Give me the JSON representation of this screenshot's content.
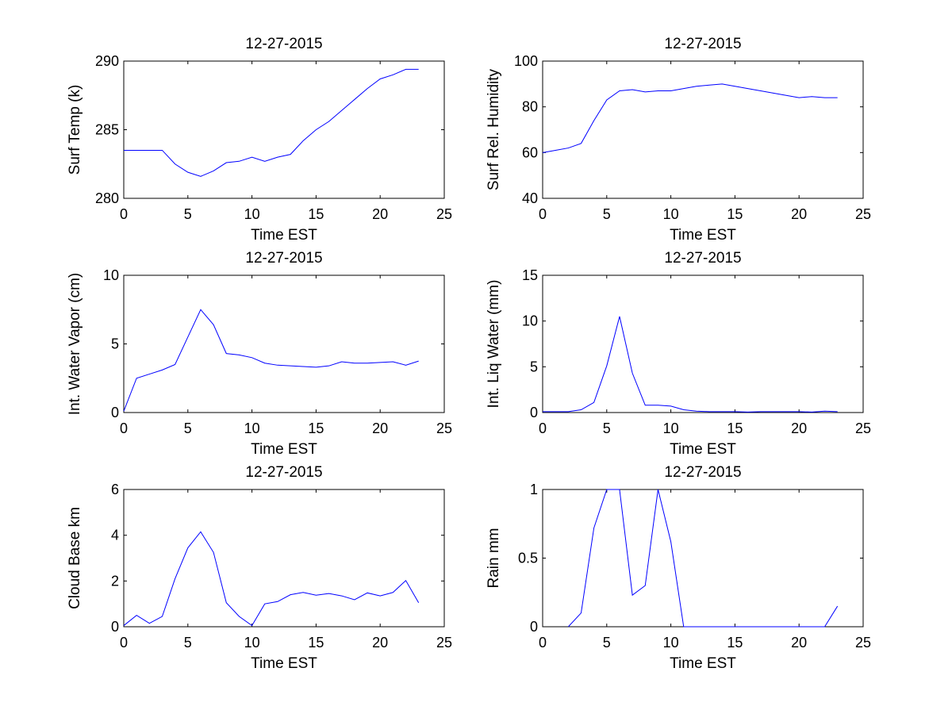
{
  "figure": {
    "series_color": "#0000ff"
  },
  "chart_data": [
    {
      "type": "line",
      "title": "12-27-2015",
      "xlabel": "Time EST",
      "ylabel": "Surf Temp (k)",
      "xlim": [
        0,
        25
      ],
      "ylim": [
        280,
        290
      ],
      "xticks": [
        0,
        5,
        10,
        15,
        20,
        25
      ],
      "yticks": [
        280,
        285,
        290
      ],
      "grid": false,
      "x": [
        0,
        1,
        2,
        3,
        4,
        5,
        6,
        7,
        8,
        9,
        10,
        11,
        12,
        13,
        14,
        15,
        16,
        17,
        18,
        19,
        20,
        21,
        22,
        23
      ],
      "y": [
        283.5,
        283.5,
        283.5,
        283.5,
        282.5,
        281.9,
        281.6,
        282,
        282.6,
        282.7,
        283,
        282.7,
        283,
        283.2,
        284.2,
        285,
        285.6,
        286.4,
        287.2,
        288,
        288.7,
        289,
        289.4,
        289.4
      ]
    },
    {
      "type": "line",
      "title": "12-27-2015",
      "xlabel": "Time EST",
      "ylabel": "Surf Rel. Humidity",
      "xlim": [
        0,
        25
      ],
      "ylim": [
        40,
        100
      ],
      "xticks": [
        0,
        5,
        10,
        15,
        20,
        25
      ],
      "yticks": [
        40,
        60,
        80,
        100
      ],
      "grid": false,
      "x": [
        0,
        1,
        2,
        3,
        4,
        5,
        6,
        7,
        8,
        9,
        10,
        11,
        12,
        13,
        14,
        15,
        16,
        17,
        18,
        19,
        20,
        21,
        22,
        23
      ],
      "y": [
        60,
        61,
        62,
        64,
        74,
        83,
        87,
        87.5,
        86.5,
        87,
        87,
        88,
        89,
        89.5,
        90,
        89,
        88,
        87,
        86,
        85,
        84,
        84.5,
        84,
        84
      ]
    },
    {
      "type": "line",
      "title": "12-27-2015",
      "xlabel": "Time EST",
      "ylabel": "Int. Water Vapor (cm)",
      "xlim": [
        0,
        25
      ],
      "ylim": [
        0,
        10
      ],
      "xticks": [
        0,
        5,
        10,
        15,
        20,
        25
      ],
      "yticks": [
        0,
        5,
        10
      ],
      "grid": false,
      "x": [
        0,
        1,
        2,
        3,
        4,
        5,
        6,
        7,
        8,
        9,
        10,
        11,
        12,
        13,
        14,
        15,
        16,
        17,
        18,
        19,
        20,
        21,
        22,
        23
      ],
      "y": [
        0.1,
        2.5,
        2.8,
        3.1,
        3.5,
        5.5,
        7.5,
        6.4,
        4.3,
        4.2,
        4.0,
        3.6,
        3.45,
        3.4,
        3.35,
        3.3,
        3.4,
        3.7,
        3.6,
        3.6,
        3.65,
        3.7,
        3.45,
        3.75
      ]
    },
    {
      "type": "line",
      "title": "12-27-2015",
      "xlabel": "Time EST",
      "ylabel": "Int. Liq Water (mm)",
      "xlim": [
        0,
        25
      ],
      "ylim": [
        0,
        15
      ],
      "xticks": [
        0,
        5,
        10,
        15,
        20,
        25
      ],
      "yticks": [
        0,
        5,
        10,
        15
      ],
      "grid": false,
      "x": [
        0,
        1,
        2,
        3,
        4,
        5,
        6,
        7,
        8,
        9,
        10,
        11,
        12,
        13,
        14,
        15,
        16,
        17,
        18,
        19,
        20,
        21,
        22,
        23
      ],
      "y": [
        0.1,
        0.1,
        0.1,
        0.3,
        1.1,
        5.1,
        10.5,
        4.3,
        0.8,
        0.8,
        0.7,
        0.3,
        0.15,
        0.1,
        0.1,
        0.1,
        0.05,
        0.1,
        0.1,
        0.1,
        0.1,
        0.05,
        0.15,
        0.1
      ]
    },
    {
      "type": "line",
      "title": "12-27-2015",
      "xlabel": "Time EST",
      "ylabel": "Cloud Base km",
      "xlim": [
        0,
        25
      ],
      "ylim": [
        0,
        6
      ],
      "xticks": [
        0,
        5,
        10,
        15,
        20,
        25
      ],
      "yticks": [
        0,
        2,
        4,
        6
      ],
      "grid": false,
      "x": [
        0,
        1,
        2,
        3,
        4,
        5,
        6,
        7,
        8,
        9,
        10,
        11,
        12,
        13,
        14,
        15,
        16,
        17,
        18,
        19,
        20,
        21,
        22,
        23
      ],
      "y": [
        0.05,
        0.5,
        0.15,
        0.45,
        2.1,
        3.45,
        4.15,
        3.25,
        1.05,
        0.45,
        0.05,
        1.0,
        1.1,
        1.4,
        1.5,
        1.38,
        1.45,
        1.35,
        1.18,
        1.48,
        1.35,
        1.5,
        2.02,
        1.05
      ]
    },
    {
      "type": "line",
      "title": "12-27-2015",
      "xlabel": "Time EST",
      "ylabel": "Rain mm",
      "xlim": [
        0,
        25
      ],
      "ylim": [
        0,
        1
      ],
      "xticks": [
        0,
        5,
        10,
        15,
        20,
        25
      ],
      "yticks": [
        0,
        0.5,
        1
      ],
      "grid": false,
      "x": [
        2,
        3,
        4,
        5,
        6,
        7,
        8,
        9,
        10,
        11,
        22,
        23
      ],
      "y": [
        0,
        0.1,
        0.72,
        1.0,
        1.0,
        0.23,
        0.3,
        1.0,
        0.62,
        0,
        0,
        0.15
      ]
    }
  ]
}
